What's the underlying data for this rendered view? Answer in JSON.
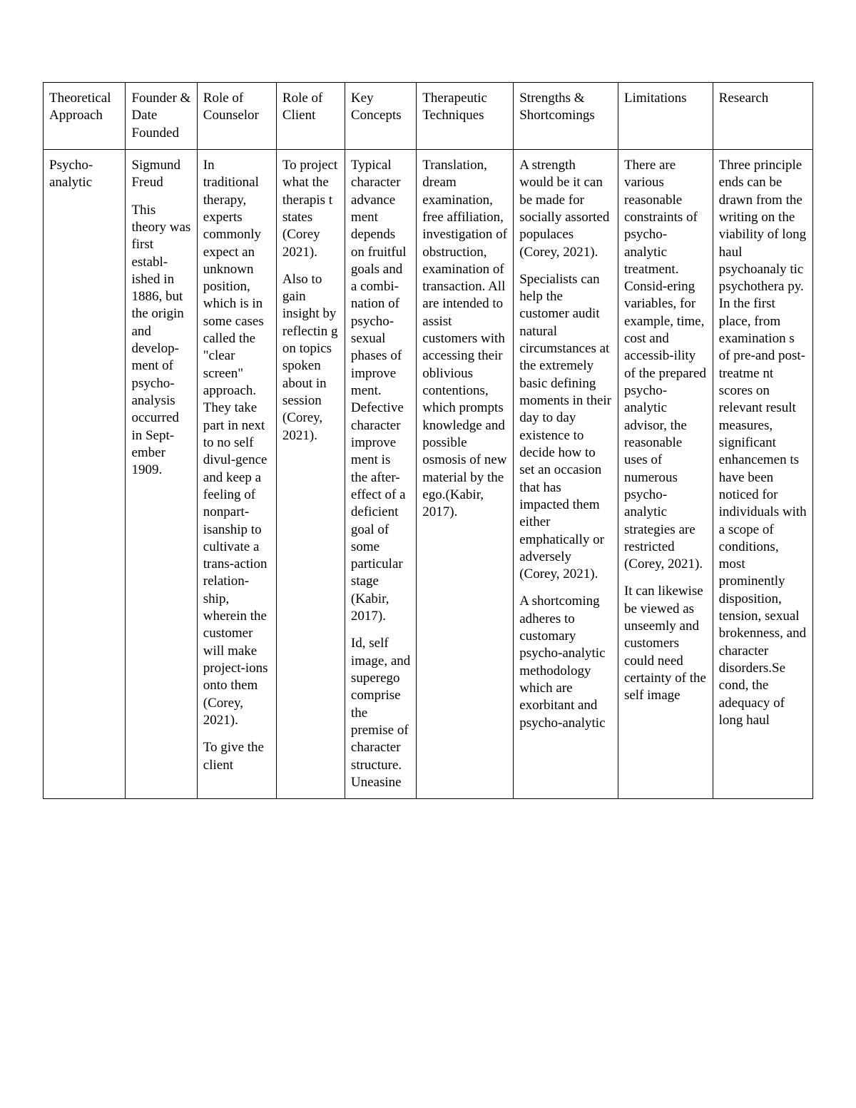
{
  "table": {
    "columns": [
      "Theoretical Approach",
      "Founder & Date Founded",
      "Role of Counselor",
      "Role of Client",
      "Key Concepts",
      "Therapeutic Techniques",
      "Strengths & Shortcomings",
      "Limitations",
      "Research"
    ],
    "row": {
      "approach": "Psycho-analytic",
      "founder": [
        "Sigmund Freud",
        "This theory was first establ-ished in 1886, but the origin and develop-ment of psycho-analysis occurred in Sept-ember 1909."
      ],
      "counselor_role": [
        "In traditional therapy, experts commonly expect an unknown position, which is in some cases called the \"clear screen\" approach. They take part in next to no self divul-gence and keep a feeling of nonpart-isanship to cultivate a trans-action relation-ship, wherein the customer will make project-ions onto them (Corey, 2021).",
        "To give the client"
      ],
      "client_role": [
        "To project what the therapis t states (Corey 2021).",
        "Also to gain insight by reflectin g on topics spoken about in session (Corey, 2021)."
      ],
      "key_concepts": [
        "Typical character advance ment depends on fruitful goals and a combi-nation of psycho-sexual phases of improve ment. Defective character improve ment is the after-effect of a deficient goal of some particular stage (Kabir, 2017).",
        "Id, self image, and superego comprise the premise of character structure. Uneasine"
      ],
      "techniques": [
        "Translation, dream examination, free affiliation, investigation of obstruction, examination of transaction. All are intended to assist customers with accessing their oblivious contentions, which prompts knowledge and possible osmosis of new material by the ego.(Kabir, 2017)."
      ],
      "strengths": [
        "A strength would be it can be made for socially assorted populaces (Corey, 2021).",
        "Specialists can help the customer audit natural circumstances at the extremely basic defining moments in their day to day existence to decide how to set an occasion that has impacted them either emphatically or adversely (Corey, 2021).",
        "A shortcoming adheres to customary psycho-analytic methodology which are exorbitant and psycho-analytic"
      ],
      "limitations": [
        "There are various reasonable constraints of psycho-analytic treatment. Consid-ering variables, for example, time, cost and accessib-ility of the prepared psycho-analytic advisor, the reasonable uses of numerous psycho-analytic strategies are restricted (Corey, 2021).",
        "It can likewise be viewed as unseemly and customers could need certainty of the self image"
      ],
      "research": [
        "Three principle ends can be drawn from the writing on the viability of long haul psychoanaly tic psychothera py. In the first place, from examination s of pre-and post-treatme nt scores on relevant result measures, significant enhancemen ts have been noticed for individuals with a scope of conditions, most prominently disposition, tension, sexual brokenness, and character disorders.Se cond, the adequacy of long haul"
      ]
    },
    "border_color": "#000000",
    "background_color": "#ffffff",
    "font_family": "Times New Roman",
    "font_size_pt": 14,
    "column_widths_pct": [
      10.7,
      9.3,
      10.3,
      8.9,
      9.3,
      12.6,
      13.6,
      12.3,
      13.0
    ]
  }
}
